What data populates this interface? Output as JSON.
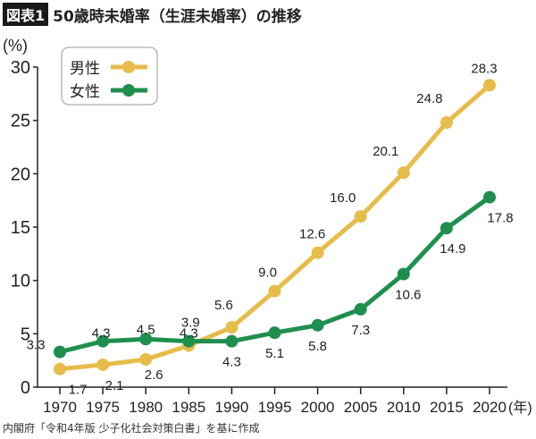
{
  "header": {
    "badge": "図表1",
    "title": "50歳時未婚率（生涯未婚率）の推移"
  },
  "source": "内閣府「令和4年版 少子化社会対策白書」を基に作成",
  "chart_data": {
    "type": "line",
    "title": "50歳時未婚率（生涯未婚率）の推移",
    "ylabel": "(%)",
    "xlabel": "(年)",
    "ylim": [
      0,
      30
    ],
    "yticks": [
      0,
      5,
      10,
      15,
      20,
      25,
      30
    ],
    "categories": [
      "1970",
      "1975",
      "1980",
      "1985",
      "1990",
      "1995",
      "2000",
      "2005",
      "2010",
      "2015",
      "2020"
    ],
    "grid": false,
    "legend_position": "top-left",
    "series": [
      {
        "name": "男性",
        "color": "#e6bc4a",
        "values": [
          1.7,
          2.1,
          2.6,
          3.9,
          5.6,
          9.0,
          12.6,
          16.0,
          20.1,
          24.8,
          28.3
        ]
      },
      {
        "name": "女性",
        "color": "#1f8f4e",
        "values": [
          3.3,
          4.3,
          4.5,
          4.3,
          4.3,
          5.1,
          5.8,
          7.3,
          10.6,
          14.9,
          17.8
        ]
      }
    ]
  }
}
